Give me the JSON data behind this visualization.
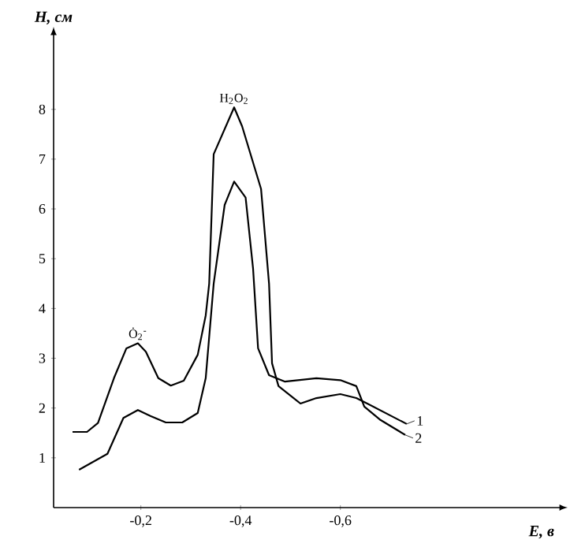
{
  "chart_data": {
    "type": "line",
    "xlabel": "*E, в*",
    "ylabel": "*H, см*",
    "xlim": [
      -0.025,
      -1.04
    ],
    "ylim": [
      0,
      9.5
    ],
    "xticks": [
      {
        "value": -0.2,
        "label": "-0,2"
      },
      {
        "value": -0.4,
        "label": "-0,4"
      },
      {
        "value": -0.6,
        "label": "-0,6"
      }
    ],
    "yticks": [
      1,
      2,
      3,
      4,
      5,
      6,
      7,
      8
    ],
    "grid": false,
    "legend": "right",
    "marker": "none",
    "line_style": "solid",
    "annotations": [
      {
        "text": "H$_{2}$O$_{2}$",
        "x": -0.387,
        "y": 8.04
      },
      {
        "text": "Ȯ$_{2}$$^{-}$",
        "x": -0.194,
        "y": 3.3
      }
    ],
    "series": [
      {
        "name": "1",
        "color": "#000000",
        "x": [
          -0.063,
          -0.092,
          -0.114,
          -0.146,
          -0.171,
          -0.194,
          -0.21,
          -0.235,
          -0.26,
          -0.286,
          -0.314,
          -0.33,
          -0.337,
          -0.346,
          -0.387,
          -0.403,
          -0.441,
          -0.457,
          -0.463,
          -0.476,
          -0.52,
          -0.552,
          -0.6,
          -0.632,
          -0.654,
          -0.733
        ],
        "values": [
          1.52,
          1.52,
          1.7,
          2.6,
          3.2,
          3.3,
          3.13,
          2.6,
          2.45,
          2.55,
          3.07,
          3.86,
          4.5,
          7.1,
          8.04,
          7.66,
          6.4,
          4.5,
          2.9,
          2.44,
          2.09,
          2.2,
          2.28,
          2.2,
          2.09,
          1.68
        ]
      },
      {
        "name": "2",
        "color": "#000000",
        "x": [
          -0.076,
          -0.133,
          -0.165,
          -0.194,
          -0.219,
          -0.25,
          -0.283,
          -0.314,
          -0.33,
          -0.346,
          -0.368,
          -0.387,
          -0.41,
          -0.425,
          -0.435,
          -0.457,
          -0.489,
          -0.552,
          -0.6,
          -0.632,
          -0.648,
          -0.679,
          -0.73
        ],
        "values": [
          0.76,
          1.08,
          1.8,
          1.96,
          1.84,
          1.71,
          1.71,
          1.9,
          2.6,
          4.5,
          6.08,
          6.55,
          6.23,
          4.8,
          3.2,
          2.66,
          2.53,
          2.6,
          2.56,
          2.44,
          2.03,
          1.77,
          1.46
        ]
      }
    ]
  }
}
